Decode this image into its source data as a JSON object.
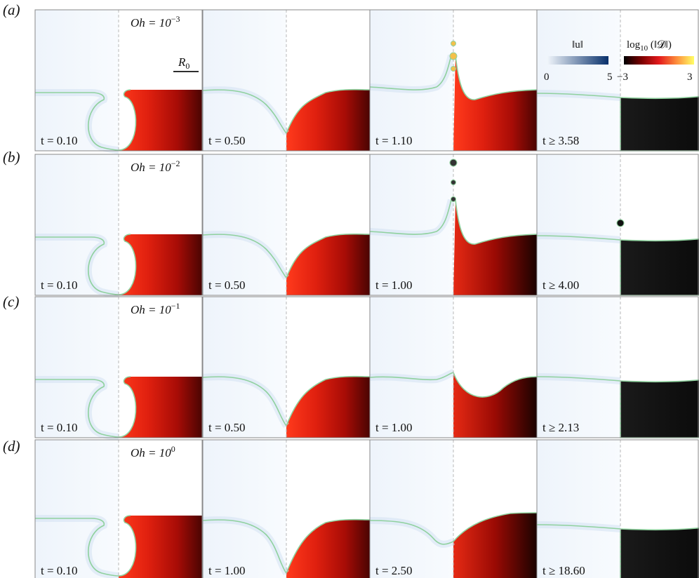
{
  "rows": [
    {
      "label": "(a)",
      "oh_base": "Oh = 10",
      "oh_exp": "−3",
      "times": [
        "t = 0.10",
        "t = 0.50",
        "t = 1.10",
        "t ≥ 3.58"
      ]
    },
    {
      "label": "(b)",
      "oh_base": "Oh = 10",
      "oh_exp": "−2",
      "times": [
        "t = 0.10",
        "t = 0.50",
        "t = 1.00",
        "t ≥ 4.00"
      ]
    },
    {
      "label": "(c)",
      "oh_base": "Oh = 10",
      "oh_exp": "−1",
      "times": [
        "t = 0.10",
        "t = 0.50",
        "t = 1.00",
        "t ≥ 2.13"
      ]
    },
    {
      "label": "(d)",
      "oh_base": "Oh = 10",
      "oh_exp": "0",
      "times": [
        "t = 0.10",
        "t = 1.00",
        "t = 2.50",
        "t ≥ 18.60"
      ]
    }
  ],
  "scale_bar": {
    "label": "R",
    "sub": "0"
  },
  "colorbar_velocity": {
    "title": "‖u‖",
    "min": "0",
    "max": "5",
    "colors": [
      "#f2f7fc",
      "#08306b"
    ]
  },
  "colorbar_dissipation": {
    "title": "log",
    "title_sub": "10",
    "title_rest": " (‖𝓓‖)",
    "min": "−3",
    "max": "3",
    "colors": [
      "#000000",
      "#7a0000",
      "#e31a1c",
      "#fd8d3c",
      "#ffff66"
    ]
  }
}
